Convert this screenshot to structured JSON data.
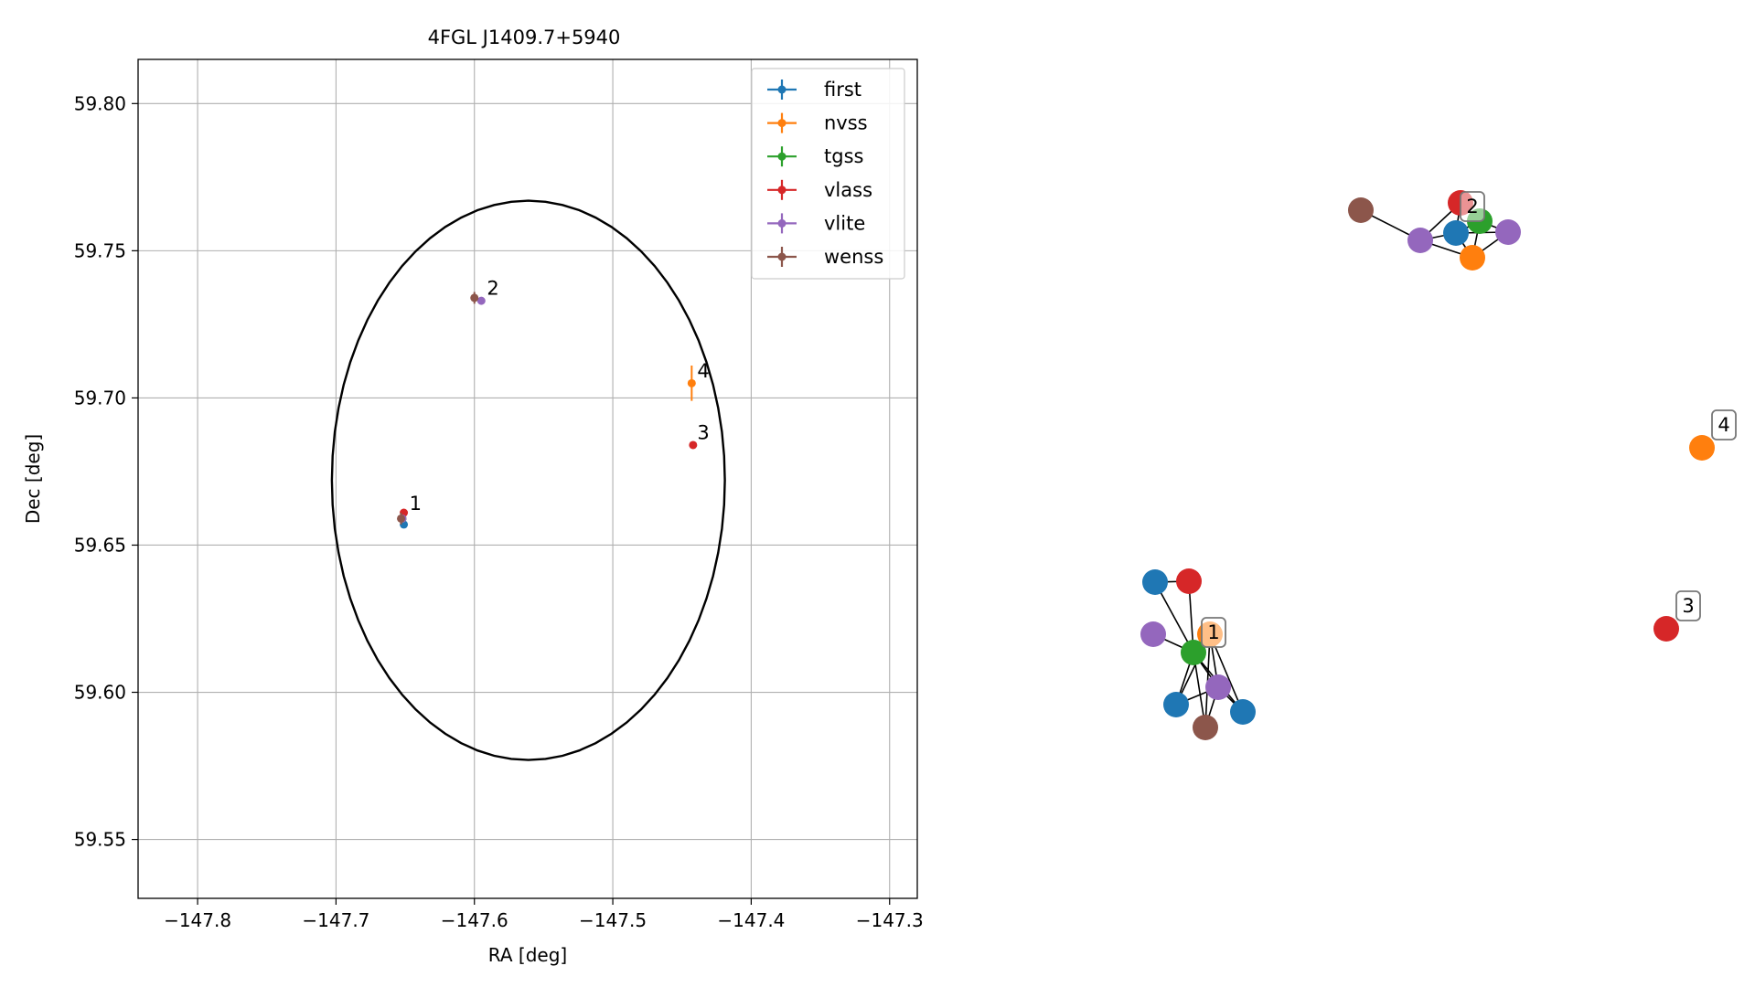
{
  "chart_data": [
    {
      "type": "scatter",
      "title": "4FGL J1409.7+5940",
      "xlabel": "RA [deg]",
      "ylabel": "Dec [deg]",
      "xlim": [
        -147.843,
        -147.28
      ],
      "ylim": [
        59.53,
        59.815
      ],
      "xticks": [
        -147.8,
        -147.7,
        -147.6,
        -147.5,
        -147.4,
        -147.3
      ],
      "xtick_labels": [
        "−147.8",
        "−147.7",
        "−147.6",
        "−147.5",
        "−147.4",
        "−147.3"
      ],
      "yticks": [
        59.55,
        59.6,
        59.65,
        59.7,
        59.75,
        59.8
      ],
      "ytick_labels": [
        "59.55",
        "59.60",
        "59.65",
        "59.70",
        "59.75",
        "59.80"
      ],
      "grid": true,
      "legend_position": "top-right",
      "series": [
        {
          "name": "first",
          "color": "#1f77b4",
          "points": [
            {
              "x": -147.651,
              "y": 59.657,
              "xerr": 0.0003,
              "yerr": 0.0005
            }
          ]
        },
        {
          "name": "nvss",
          "color": "#ff7f0e",
          "points": [
            {
              "x": -147.443,
              "y": 59.705,
              "xerr": 0.002,
              "yerr": 0.006
            }
          ]
        },
        {
          "name": "tgss",
          "color": "#2ca02c",
          "points": [
            {
              "x": -147.652,
              "y": 59.659,
              "xerr": 0.0006,
              "yerr": 0.001
            }
          ]
        },
        {
          "name": "vlass",
          "color": "#d62728",
          "points": [
            {
              "x": -147.651,
              "y": 59.661,
              "xerr": 0.0002,
              "yerr": 0.0003
            },
            {
              "x": -147.442,
              "y": 59.684,
              "xerr": 0.0002,
              "yerr": 0.0003
            }
          ]
        },
        {
          "name": "vlite",
          "color": "#9467bd",
          "points": [
            {
              "x": -147.652,
              "y": 59.659,
              "xerr": 0.0008,
              "yerr": 0.001
            },
            {
              "x": -147.595,
              "y": 59.733,
              "xerr": 0.0008,
              "yerr": 0.001
            }
          ]
        },
        {
          "name": "wenss",
          "color": "#8c564b",
          "points": [
            {
              "x": -147.653,
              "y": 59.659,
              "xerr": 0.001,
              "yerr": 0.002
            },
            {
              "x": -147.6,
              "y": 59.734,
              "xerr": 0.001,
              "yerr": 0.002
            }
          ]
        }
      ],
      "annotations": [
        {
          "text": "1",
          "x": -147.647,
          "y": 59.662
        },
        {
          "text": "2",
          "x": -147.591,
          "y": 59.735
        },
        {
          "text": "4",
          "x": -147.439,
          "y": 59.707
        },
        {
          "text": "3",
          "x": -147.439,
          "y": 59.686
        }
      ],
      "ellipse": {
        "center_x": -147.561,
        "center_y": 59.672,
        "semi_axis_ra": 0.142,
        "semi_axis_dec": 0.095,
        "color": "#000000"
      }
    },
    {
      "type": "network",
      "nodes": [
        {
          "id": "g1-blue-a",
          "color": "#1f77b4"
        },
        {
          "id": "g1-red",
          "color": "#d62728"
        },
        {
          "id": "g1-purple-a",
          "color": "#9467bd"
        },
        {
          "id": "g1-orange",
          "color": "#ff7f0e"
        },
        {
          "id": "g1-green",
          "color": "#2ca02c"
        },
        {
          "id": "g1-purple-b",
          "color": "#9467bd"
        },
        {
          "id": "g1-blue-b",
          "color": "#1f77b4"
        },
        {
          "id": "g1-blue-c",
          "color": "#1f77b4"
        },
        {
          "id": "g1-brown",
          "color": "#8c564b"
        },
        {
          "id": "g2-brown",
          "color": "#8c564b"
        },
        {
          "id": "g2-red",
          "color": "#d62728"
        },
        {
          "id": "g2-green",
          "color": "#2ca02c"
        },
        {
          "id": "g2-blue",
          "color": "#1f77b4"
        },
        {
          "id": "g2-purple-a",
          "color": "#9467bd"
        },
        {
          "id": "g2-purple-b",
          "color": "#9467bd"
        },
        {
          "id": "g2-orange",
          "color": "#ff7f0e"
        },
        {
          "id": "g4-orange",
          "color": "#ff7f0e"
        },
        {
          "id": "g3-red",
          "color": "#d62728"
        }
      ],
      "edges": [
        [
          "g1-blue-a",
          "g1-green"
        ],
        [
          "g1-red",
          "g1-green"
        ],
        [
          "g1-purple-a",
          "g1-green"
        ],
        [
          "g1-green",
          "g1-orange"
        ],
        [
          "g1-green",
          "g1-blue-b"
        ],
        [
          "g1-green",
          "g1-brown"
        ],
        [
          "g1-green",
          "g1-purple-b"
        ],
        [
          "g1-green",
          "g1-blue-c"
        ],
        [
          "g1-orange",
          "g1-purple-b"
        ],
        [
          "g1-orange",
          "g1-brown"
        ],
        [
          "g1-orange",
          "g1-blue-c"
        ],
        [
          "g1-purple-b",
          "g1-blue-b"
        ],
        [
          "g1-purple-b",
          "g1-brown"
        ],
        [
          "g1-blue-c",
          "g1-purple-b"
        ],
        [
          "g1-blue-a",
          "g1-red"
        ],
        [
          "g1-orange",
          "g1-blue-b"
        ],
        [
          "g2-brown",
          "g2-purple-a"
        ],
        [
          "g2-purple-a",
          "g2-blue"
        ],
        [
          "g2-purple-a",
          "g2-orange"
        ],
        [
          "g2-purple-a",
          "g2-red"
        ],
        [
          "g2-blue",
          "g2-red"
        ],
        [
          "g2-blue",
          "g2-green"
        ],
        [
          "g2-blue",
          "g2-purple-b"
        ],
        [
          "g2-blue",
          "g2-orange"
        ],
        [
          "g2-red",
          "g2-green"
        ],
        [
          "g2-green",
          "g2-orange"
        ],
        [
          "g2-green",
          "g2-purple-b"
        ],
        [
          "g2-orange",
          "g2-purple-b"
        ]
      ],
      "labels": [
        {
          "text": "1",
          "node": "g1-orange"
        },
        {
          "text": "2",
          "node": "g2-green"
        },
        {
          "text": "4",
          "node": "g4-orange"
        },
        {
          "text": "3",
          "node": "g3-red"
        }
      ]
    }
  ]
}
